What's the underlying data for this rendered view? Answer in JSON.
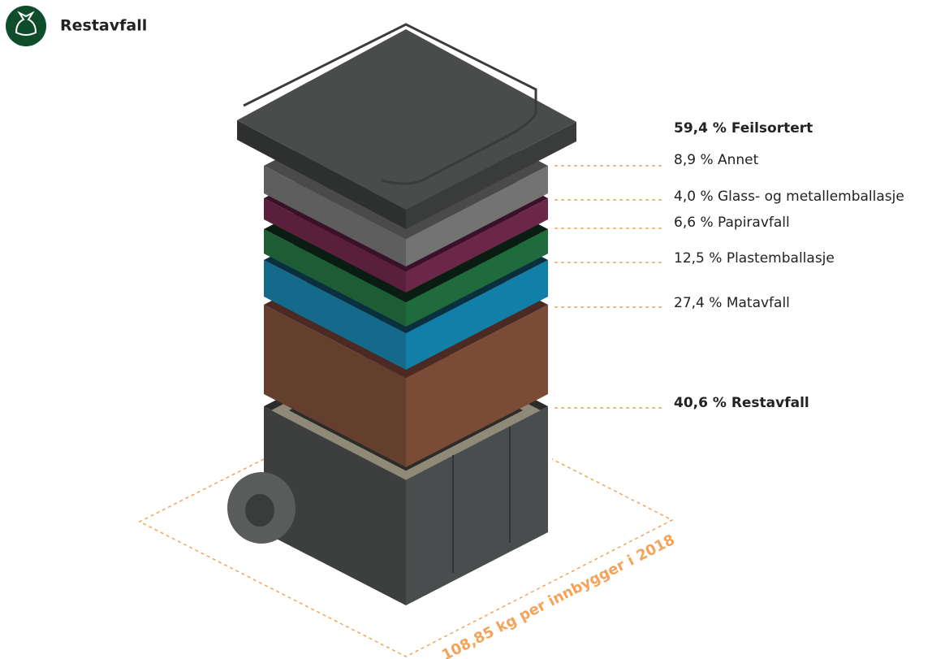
{
  "header": {
    "title": "Restavfall"
  },
  "feilsortert": {
    "heading": "59,4 % Feilsortert",
    "items": [
      "8,9 % Annet",
      "4,0 % Glass- og metallemballasje",
      "6,6 % Papiravfall",
      "12,5 % Plastemballasje",
      "27,4 % Matavfall"
    ]
  },
  "restavfall": {
    "heading": "40,6 % Restavfall"
  },
  "footprint": "108,85 kg per innbygger i 2018"
}
